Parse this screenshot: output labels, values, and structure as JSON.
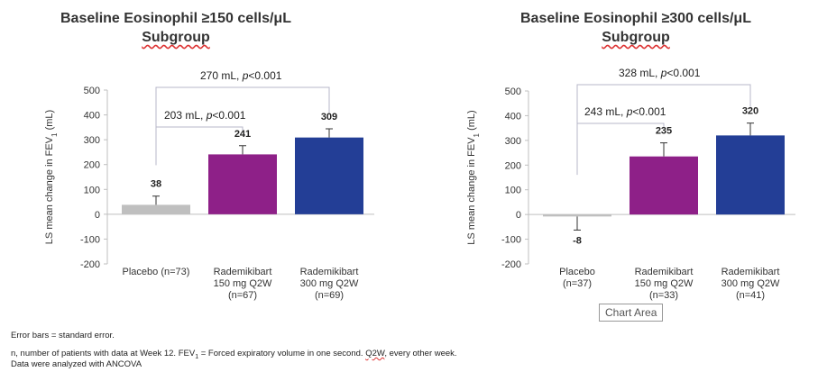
{
  "chart_data": [
    {
      "type": "bar",
      "title": "Baseline Eosinophil ≥150 cells/μL",
      "title_line2": "Subgroup",
      "ylabel_prefix": "LS mean change in FEV",
      "ylabel_sub": "1",
      "ylabel_suffix": " (mL)",
      "ylim": [
        -200,
        500
      ],
      "yticks": [
        -200,
        -100,
        0,
        100,
        200,
        300,
        400,
        500
      ],
      "grid": false,
      "categories": [
        [
          "Placebo (n=73)"
        ],
        [
          "Rademikibart",
          "150 mg Q2W",
          "(n=67)"
        ],
        [
          "Rademikibart",
          "300 mg Q2W",
          "(n=69)"
        ]
      ],
      "values": [
        38,
        241,
        309
      ],
      "error_plus": [
        35,
        35,
        35
      ],
      "data_labels": [
        "38",
        "241",
        "309"
      ],
      "colors": [
        "#bfbfbf",
        "#8e2088",
        "#233e96"
      ],
      "comparisons": [
        {
          "from": 0,
          "to": 1,
          "label": "203 mL, ",
          "p": "p",
          "plabel": "<0.001",
          "level": 1
        },
        {
          "from": 0,
          "to": 2,
          "label": "270 mL, ",
          "p": "p",
          "plabel": "<0.001",
          "level": 2
        }
      ]
    },
    {
      "type": "bar",
      "title": "Baseline Eosinophil ≥300 cells/μL",
      "title_line2": "Subgroup",
      "ylabel_prefix": "LS mean change in FEV",
      "ylabel_sub": "1",
      "ylabel_suffix": " (mL)",
      "ylim": [
        -200,
        500
      ],
      "yticks": [
        -200,
        -100,
        0,
        100,
        200,
        300,
        400,
        500
      ],
      "grid": false,
      "categories": [
        [
          "Placebo",
          "(n=37)"
        ],
        [
          "Rademikibart",
          "150 mg Q2W",
          "(n=33)"
        ],
        [
          "Rademikibart",
          "300 mg Q2W",
          "(n=41)"
        ]
      ],
      "values": [
        -8,
        235,
        320
      ],
      "error_plus": [
        55,
        55,
        50
      ],
      "data_labels": [
        "-8",
        "235",
        "320"
      ],
      "colors": [
        "#bfbfbf",
        "#8e2088",
        "#233e96"
      ],
      "comparisons": [
        {
          "from": 0,
          "to": 1,
          "label": "243 mL, ",
          "p": "p",
          "plabel": "<0.001",
          "level": 1
        },
        {
          "from": 0,
          "to": 2,
          "label": "328 mL, ",
          "p": "p",
          "plabel": "<0.001",
          "level": 2
        }
      ]
    }
  ],
  "tooltip": "Chart Area",
  "footnotes": {
    "error_bars": "Error bars = standard error.",
    "definitions_a": "n, number of patients with data at Week 12. FEV",
    "definitions_sub": "1",
    "definitions_b": " = Forced expiratory volume in one second.  ",
    "definitions_q2w": "Q2W",
    "definitions_c": ", every other week.",
    "analysis": "Data were analyzed with ANCOVA"
  }
}
